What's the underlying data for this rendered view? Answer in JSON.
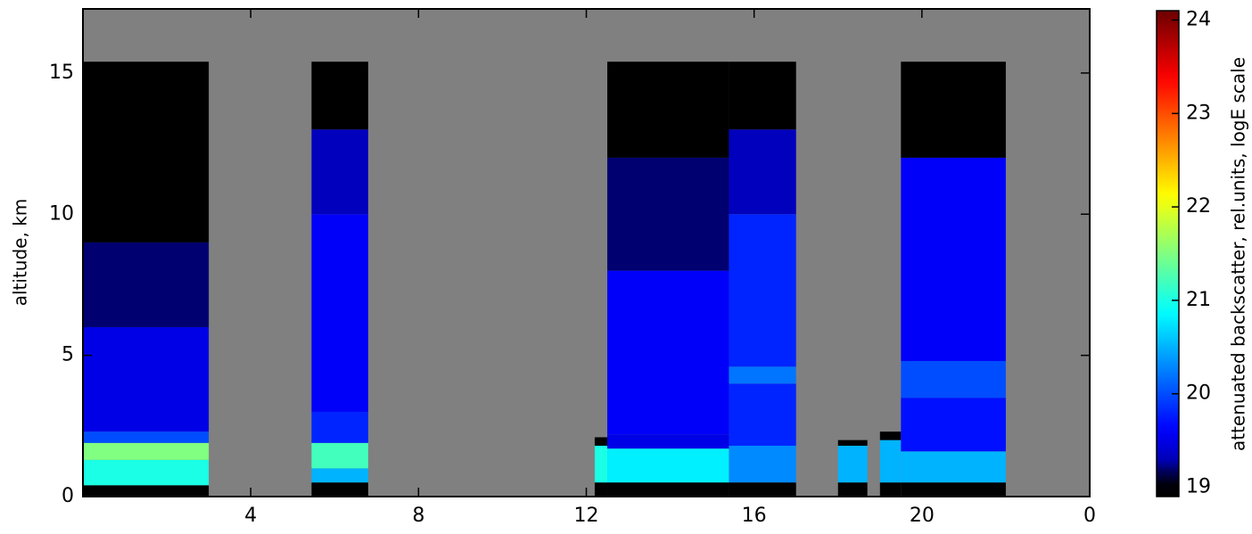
{
  "chart_data": {
    "type": "heatmap",
    "ylabel": "altitude, km",
    "colorbar_label": "attenuated backscatter, rel.units, logE scale",
    "xlim": [
      0,
      24
    ],
    "xticks": [
      4,
      8,
      12,
      16,
      20,
      {
        "value": 24,
        "label": "0"
      }
    ],
    "ylim": [
      0,
      17.27
    ],
    "yticks": [
      0,
      5,
      10,
      15
    ],
    "clim": [
      18.9,
      24.1
    ],
    "cticks": [
      19,
      20,
      21,
      22,
      23,
      24
    ],
    "colormap": "jet",
    "segments": [
      {
        "x": [
          0,
          3.0
        ],
        "bands": [
          [
            0,
            0.4,
            19
          ],
          [
            0.4,
            1.3,
            21
          ],
          [
            1.3,
            1.9,
            21.5
          ],
          [
            1.9,
            2.3,
            20
          ],
          [
            2.3,
            6,
            19.5
          ],
          [
            6,
            9,
            19.2
          ],
          [
            9,
            15.4,
            19
          ]
        ]
      },
      {
        "x": [
          5.45,
          6.8
        ],
        "bands": [
          [
            0,
            0.5,
            19
          ],
          [
            0.5,
            1,
            20.5
          ],
          [
            1,
            1.9,
            21.2
          ],
          [
            1.9,
            3,
            19.8
          ],
          [
            3,
            10,
            19.6
          ],
          [
            10,
            13,
            19.3
          ],
          [
            13,
            15.4,
            19
          ]
        ]
      },
      {
        "x": [
          12.2,
          12.5
        ],
        "bands": [
          [
            0,
            0.5,
            19
          ],
          [
            0.5,
            1.8,
            21
          ],
          [
            1.8,
            2.1,
            19
          ]
        ]
      },
      {
        "x": [
          12.5,
          15.4
        ],
        "bands": [
          [
            0,
            0.5,
            19
          ],
          [
            0.5,
            1.7,
            20.8
          ],
          [
            1.7,
            2.2,
            19.5
          ],
          [
            2.2,
            8,
            19.6
          ],
          [
            8,
            12,
            19.2
          ],
          [
            12,
            15.4,
            19
          ]
        ]
      },
      {
        "x": [
          15.4,
          17.0
        ],
        "bands": [
          [
            0,
            0.5,
            19
          ],
          [
            0.5,
            1.8,
            20.3
          ],
          [
            1.8,
            4,
            19.8
          ],
          [
            4,
            4.6,
            20.2
          ],
          [
            4.6,
            10,
            19.8
          ],
          [
            10,
            13,
            19.3
          ],
          [
            13,
            15.4,
            19
          ]
        ]
      },
      {
        "x": [
          18.0,
          18.7
        ],
        "bands": [
          [
            0,
            0.5,
            19
          ],
          [
            0.5,
            1.8,
            20.5
          ],
          [
            1.8,
            2,
            19
          ]
        ]
      },
      {
        "x": [
          19.0,
          19.5
        ],
        "bands": [
          [
            0,
            0.5,
            19
          ],
          [
            0.5,
            2,
            20.5
          ],
          [
            2,
            2.3,
            19
          ]
        ]
      },
      {
        "x": [
          19.5,
          22.0
        ],
        "bands": [
          [
            0,
            0.5,
            19
          ],
          [
            0.5,
            1.6,
            20.5
          ],
          [
            1.6,
            3.5,
            19.7
          ],
          [
            3.5,
            4.8,
            20
          ],
          [
            4.8,
            12,
            19.6
          ],
          [
            12,
            15.4,
            19
          ]
        ]
      }
    ]
  }
}
